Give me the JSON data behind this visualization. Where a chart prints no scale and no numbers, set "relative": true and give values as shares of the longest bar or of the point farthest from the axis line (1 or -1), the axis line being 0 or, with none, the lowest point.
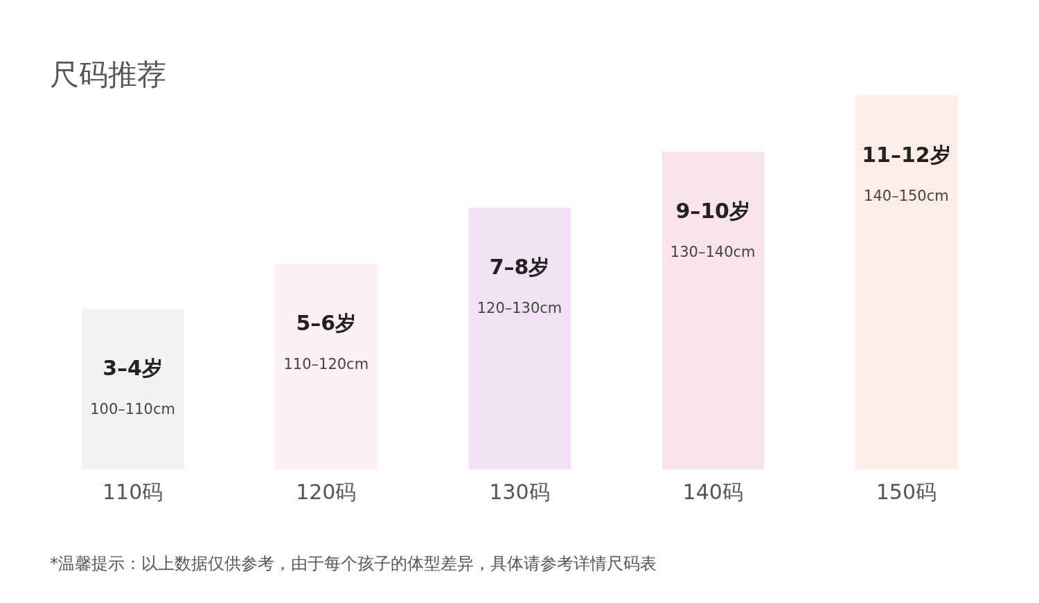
{
  "chart_data": {
    "type": "bar",
    "title": "尺码推荐",
    "relative": true,
    "categories": [
      "110码",
      "120码",
      "130码",
      "140码",
      "150码"
    ],
    "values": [
      0.43,
      0.55,
      0.7,
      0.85,
      1
    ],
    "colors": [
      "#f2f2f2",
      "#fdf0f4",
      "#f0e1f3",
      "#fae3ea",
      "#feeee8"
    ],
    "grid": false,
    "legend": false,
    "annotations": [
      "3–4岁",
      "100–110cm",
      "5–6岁",
      "110–120cm",
      "7–8岁",
      "120–130cm",
      "9–10岁",
      "130–140cm",
      "11–12岁",
      "140–150cm",
      "*温馨提示：以上数据仅供参考，由于每个孩子的体型差异，具体请参考详情尺码表"
    ]
  }
}
